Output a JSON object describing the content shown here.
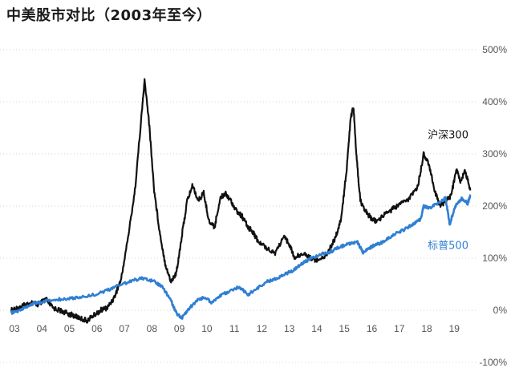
{
  "title": "中美股市对比（2003年至今）",
  "colors": {
    "csi300": "#111111",
    "sp500": "#2f7fd2",
    "sp500_label": "#2f7fd2",
    "grid": "#d6d6d6",
    "axis_text": "#555555"
  },
  "chart_data": {
    "type": "line",
    "title": "中美股市对比（2003年至今）",
    "xlabel": "",
    "ylabel": "",
    "xlim": [
      2003.0,
      2019.75
    ],
    "ylim": [
      -100,
      500
    ],
    "grid": "horizontal",
    "y_ticks": [
      500,
      400,
      300,
      200,
      100,
      0,
      -100
    ],
    "y_tick_labels": [
      "500%",
      "400%",
      "300%",
      "200%",
      "100%",
      "0%",
      "-100%"
    ],
    "x_ticks": [
      2003,
      2004,
      2005,
      2006,
      2007,
      2008,
      2009,
      2010,
      2011,
      2012,
      2013,
      2014,
      2015,
      2016,
      2017,
      2018,
      2019
    ],
    "x_tick_labels": [
      "03",
      "04",
      "05",
      "06",
      "07",
      "08",
      "09",
      "10",
      "11",
      "12",
      "13",
      "14",
      "15",
      "16",
      "17",
      "18",
      "19"
    ],
    "series": [
      {
        "name": "沪深300",
        "color": "#111111",
        "x": [
          2003.0,
          2003.25,
          2003.5,
          2003.75,
          2004.0,
          2004.25,
          2004.5,
          2004.75,
          2005.0,
          2005.25,
          2005.5,
          2005.75,
          2006.0,
          2006.25,
          2006.5,
          2006.75,
          2007.0,
          2007.25,
          2007.5,
          2007.75,
          2007.85,
          2008.0,
          2008.2,
          2008.4,
          2008.6,
          2008.8,
          2009.0,
          2009.2,
          2009.4,
          2009.6,
          2009.8,
          2010.0,
          2010.2,
          2010.4,
          2010.6,
          2010.8,
          2011.0,
          2011.2,
          2011.4,
          2011.6,
          2011.8,
          2012.0,
          2012.3,
          2012.6,
          2012.9,
          2013.1,
          2013.3,
          2013.6,
          2013.9,
          2014.2,
          2014.5,
          2014.8,
          2015.0,
          2015.2,
          2015.35,
          2015.45,
          2015.55,
          2015.7,
          2015.9,
          2016.1,
          2016.3,
          2016.6,
          2016.9,
          2017.2,
          2017.5,
          2017.8,
          2018.0,
          2018.2,
          2018.4,
          2018.6,
          2018.8,
          2019.0,
          2019.2,
          2019.35,
          2019.5,
          2019.7
        ],
        "y": [
          0,
          5,
          10,
          15,
          10,
          22,
          5,
          0,
          -5,
          -10,
          -15,
          -20,
          -10,
          0,
          5,
          25,
          60,
          140,
          230,
          380,
          440,
          370,
          230,
          150,
          90,
          55,
          70,
          140,
          210,
          240,
          210,
          225,
          170,
          160,
          215,
          225,
          210,
          190,
          180,
          160,
          150,
          130,
          120,
          110,
          140,
          130,
          100,
          110,
          100,
          95,
          110,
          140,
          175,
          270,
          370,
          390,
          300,
          210,
          190,
          175,
          170,
          185,
          195,
          205,
          215,
          240,
          300,
          280,
          230,
          200,
          210,
          220,
          270,
          245,
          270,
          230
        ]
      },
      {
        "name": "标普500",
        "color": "#2f7fd2",
        "x": [
          2003.0,
          2003.25,
          2003.5,
          2003.75,
          2004.0,
          2004.5,
          2005.0,
          2005.5,
          2006.0,
          2006.5,
          2007.0,
          2007.5,
          2007.85,
          2008.2,
          2008.5,
          2008.8,
          2009.0,
          2009.2,
          2009.5,
          2009.8,
          2010.0,
          2010.3,
          2010.6,
          2010.9,
          2011.3,
          2011.6,
          2011.9,
          2012.3,
          2012.6,
          2012.9,
          2013.3,
          2013.6,
          2013.9,
          2014.3,
          2014.6,
          2014.9,
          2015.3,
          2015.6,
          2015.8,
          2016.0,
          2016.2,
          2016.5,
          2016.9,
          2017.3,
          2017.6,
          2017.9,
          2018.0,
          2018.2,
          2018.5,
          2018.8,
          2018.95,
          2019.15,
          2019.4,
          2019.6,
          2019.7
        ],
        "y": [
          -5,
          -2,
          5,
          12,
          15,
          20,
          22,
          25,
          30,
          38,
          50,
          58,
          62,
          55,
          45,
          20,
          -5,
          -15,
          5,
          20,
          25,
          15,
          28,
          35,
          45,
          30,
          40,
          55,
          60,
          68,
          78,
          90,
          100,
          108,
          112,
          120,
          128,
          130,
          110,
          118,
          125,
          130,
          145,
          155,
          165,
          175,
          200,
          195,
          205,
          215,
          165,
          200,
          215,
          205,
          220
        ]
      }
    ],
    "annotations": [
      {
        "text": "沪深300",
        "series": "沪深300",
        "x": 2018.15,
        "y": 330
      },
      {
        "text": "标普500",
        "series": "标普500",
        "x": 2018.15,
        "y": 118
      }
    ]
  }
}
